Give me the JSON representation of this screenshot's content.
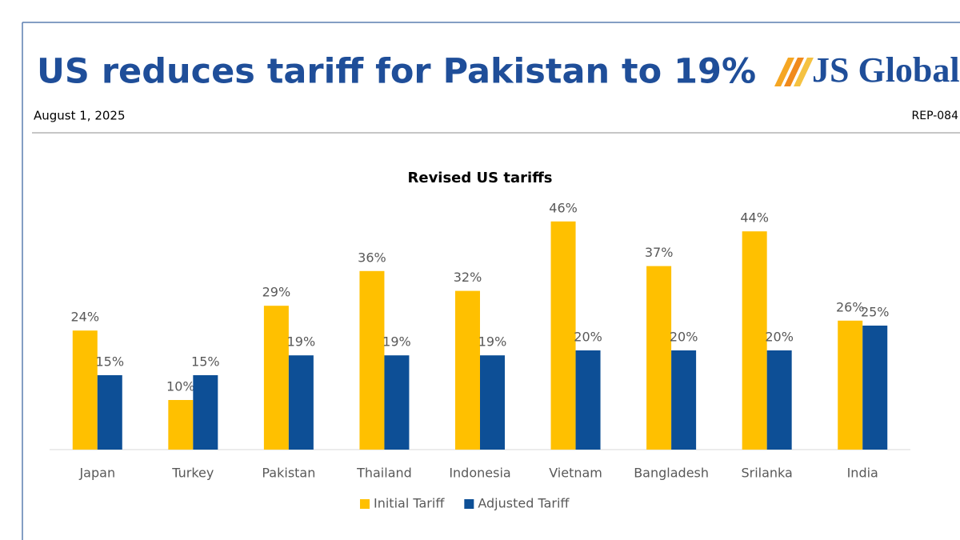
{
  "header": {
    "title": "US reduces tariff for Pakistan to 19%",
    "date": "August 1, 2025",
    "reference": "REP-084",
    "logo": "JS Global"
  },
  "chart_data": {
    "type": "bar",
    "title": "Revised US tariffs",
    "categories": [
      "Japan",
      "Turkey",
      "Pakistan",
      "Thailand",
      "Indonesia",
      "Vietnam",
      "Bangladesh",
      "Srilanka",
      "India"
    ],
    "series": [
      {
        "name": "Initial Tariff",
        "color": "#ffc000",
        "values": [
          24,
          10,
          29,
          36,
          32,
          46,
          37,
          44,
          26
        ],
        "value_labels": [
          "24%",
          "10%",
          "29%",
          "36%",
          "32%",
          "46%",
          "37%",
          "44%",
          "26%"
        ]
      },
      {
        "name": "Adjusted Tariff",
        "color": "#0d4f96",
        "values": [
          15,
          15,
          19,
          19,
          19,
          20,
          20,
          20,
          25
        ],
        "value_labels": [
          "15%",
          "15%",
          "19%",
          "19%",
          "19%",
          "20%",
          "20%",
          "20%",
          "25%"
        ]
      }
    ],
    "legend": "bottom"
  }
}
